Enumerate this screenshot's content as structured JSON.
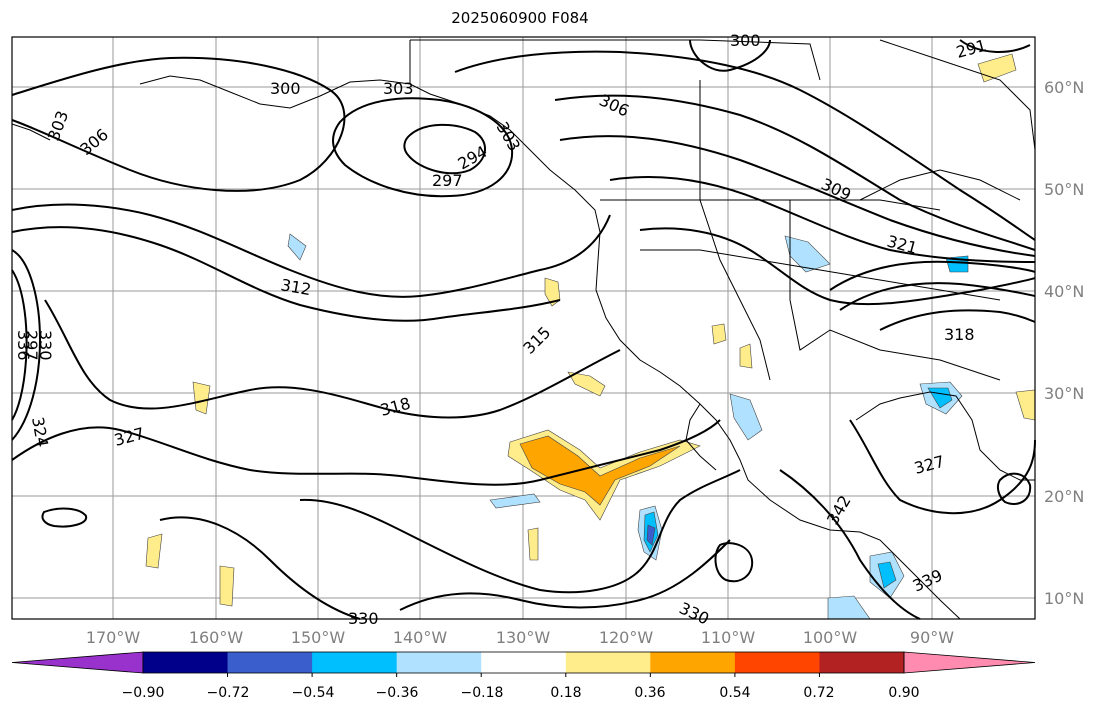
{
  "title": "2025060900 F084",
  "map": {
    "lon_labels": [
      "170°W",
      "160°W",
      "150°W",
      "140°W",
      "130°W",
      "120°W",
      "110°W",
      "100°W",
      "90°W"
    ],
    "lat_labels": [
      "60°N",
      "50°N",
      "40°N",
      "30°N",
      "20°N",
      "10°N"
    ],
    "contour_labels": [
      "300",
      "300",
      "303",
      "306",
      "303",
      "306",
      "309",
      "294",
      "297",
      "312",
      "315",
      "318",
      "321",
      "318",
      "327",
      "327",
      "324",
      "330",
      "336",
      "342",
      "339",
      "330",
      "330",
      "291",
      "297",
      "303"
    ]
  },
  "colorbar": {
    "ticks": [
      "−0.90",
      "−0.72",
      "−0.54",
      "−0.36",
      "−0.18",
      "0.18",
      "0.36",
      "0.54",
      "0.72",
      "0.90"
    ],
    "colors": [
      "#9932cc",
      "#00008b",
      "#3a5fcd",
      "#00bfff",
      "#b0e2ff",
      "#ffffff",
      "#ffec8b",
      "#ffa500",
      "#ff4500",
      "#b22222",
      "#ff8cb0"
    ]
  }
}
